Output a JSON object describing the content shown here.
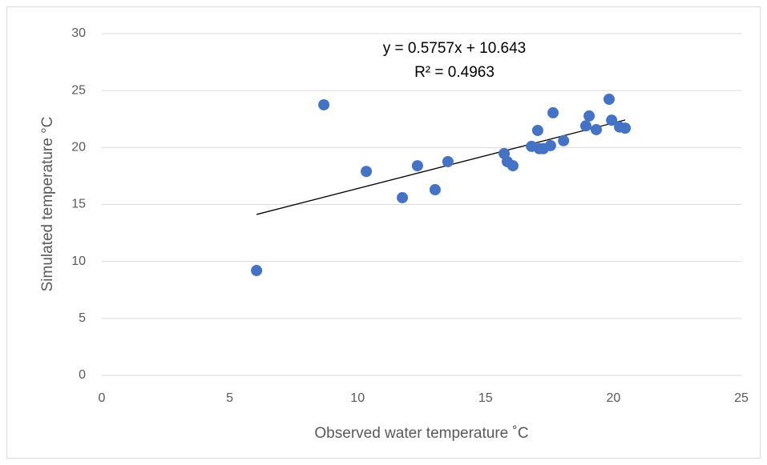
{
  "chart_data": {
    "type": "scatter",
    "x_label": "Observed water temperature ˚C",
    "y_label": "Simulated temperature  °C",
    "color": "#4472c4",
    "grid": true,
    "xlim": [
      0,
      25
    ],
    "xticks": [
      0,
      5,
      10,
      15,
      20,
      25
    ],
    "ylim": [
      0,
      30
    ],
    "yticks": [
      0,
      5,
      10,
      15,
      20,
      25,
      30
    ],
    "x": [
      6.05,
      8.68,
      10.34,
      11.75,
      12.34,
      13.03,
      13.53,
      15.73,
      15.85,
      16.07,
      16.8,
      17.04,
      17.1,
      17.26,
      17.54,
      17.64,
      18.05,
      19.05,
      18.92,
      19.33,
      19.83,
      19.93,
      20.24,
      20.46
    ],
    "values": [
      9.2,
      23.75,
      17.9,
      15.6,
      18.4,
      16.3,
      18.76,
      19.47,
      18.76,
      18.4,
      20.1,
      21.5,
      19.9,
      19.9,
      20.17,
      23.05,
      20.6,
      22.77,
      21.9,
      21.57,
      24.24,
      22.4,
      21.8,
      21.7
    ],
    "trendline": {
      "slope": 0.5757,
      "intercept": 10.643,
      "color": "#000000",
      "equation": "y = 0.5757x + 10.643",
      "r2": "R² = 0.4963"
    }
  }
}
